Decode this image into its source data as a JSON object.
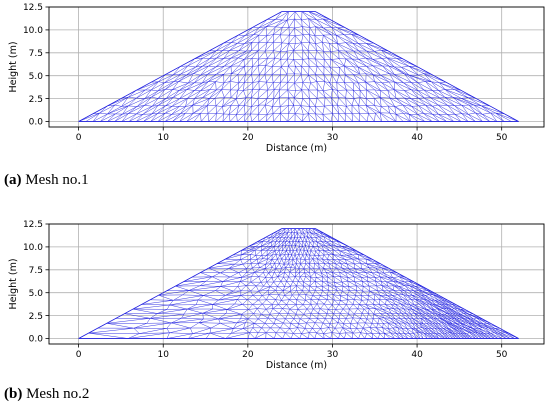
{
  "chart_data": [
    {
      "type": "mesh",
      "caption_tag": "(a)",
      "caption_text": " Mesh no.1",
      "xlabel": "Distance (m)",
      "ylabel": "Height (m)",
      "xlim": [
        -3.5,
        55
      ],
      "ylim": [
        -0.6,
        12.5
      ],
      "xticks": [
        0,
        10,
        20,
        30,
        40,
        50
      ],
      "yticks": [
        0.0,
        2.5,
        5.0,
        7.5,
        10.0,
        12.5
      ],
      "ytick_labels": [
        "0.0",
        "2.5",
        "5.0",
        "7.5",
        "10.0",
        "12.5"
      ],
      "grid": true,
      "outline": [
        [
          0,
          0
        ],
        [
          24,
          12
        ],
        [
          28,
          12
        ],
        [
          52,
          0
        ]
      ],
      "mesh_density": "uniform",
      "color": "#2020e0"
    },
    {
      "type": "mesh",
      "caption_tag": "(b)",
      "caption_text": " Mesh no.2",
      "xlabel": "Distance (m)",
      "ylabel": "Height (m)",
      "xlim": [
        -3.5,
        55
      ],
      "ylim": [
        -0.6,
        12.5
      ],
      "xticks": [
        0,
        10,
        20,
        30,
        40,
        50
      ],
      "yticks": [
        0.0,
        2.5,
        5.0,
        7.5,
        10.0,
        12.5
      ],
      "ytick_labels": [
        "0.0",
        "2.5",
        "5.0",
        "7.5",
        "10.0",
        "12.5"
      ],
      "grid": true,
      "outline": [
        [
          0,
          0
        ],
        [
          24,
          12
        ],
        [
          28,
          12
        ],
        [
          52,
          0
        ]
      ],
      "mesh_density": "graded (coarse left, fine near crest and right toe)",
      "color": "#2020e0"
    }
  ]
}
